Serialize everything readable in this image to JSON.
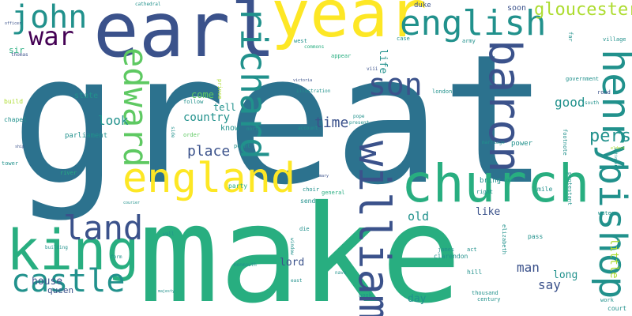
{
  "palette": {
    "dark_purple": "#440154",
    "indigo": "#3b528b",
    "blue": "#2c728e",
    "teal": "#21918c",
    "green": "#28ae80",
    "light_green": "#5ec962",
    "lime": "#addc30",
    "yellow": "#fde725",
    "background": "#ffffff"
  },
  "words": [
    "great",
    "make",
    "year",
    "earl",
    "church",
    "king",
    "england",
    "castle",
    "land",
    "william",
    "edward",
    "richard",
    "baron",
    "henry",
    "bishop",
    "son",
    "english",
    "john",
    "war",
    "gloucester",
    "person",
    "place",
    "house",
    "country",
    "time",
    "look",
    "old",
    "say",
    "man",
    "good",
    "like",
    "long",
    "day",
    "queen",
    "lord",
    "parliament",
    "tell",
    "come",
    "know",
    "life",
    "little",
    "sir",
    "duke",
    "soon",
    "follow",
    "state",
    "party",
    "power",
    "mile",
    "send",
    "bring",
    "pass",
    "hill",
    "act",
    "james",
    "clarendon",
    "thousand",
    "century",
    "court",
    "work",
    "road",
    "village",
    "army",
    "case",
    "london",
    "illustration",
    "west",
    "commons",
    "appear",
    "account",
    "present",
    "pope",
    "north",
    "prince",
    "side",
    "point",
    "order",
    "mary",
    "choir",
    "general",
    "die",
    "form",
    "monmouth",
    "window",
    "east",
    "nave",
    "book",
    "river",
    "wall",
    "building",
    "elizabeth",
    "protestant",
    "footnote",
    "government",
    "south",
    "right",
    "town",
    "marriage",
    "chapel",
    "build",
    "tower",
    "cathedral",
    "thomas",
    "viii",
    "water",
    "courier",
    "majesty",
    "victoria",
    "officer",
    "ship",
    "eldest",
    "antiquary",
    "far"
  ]
}
